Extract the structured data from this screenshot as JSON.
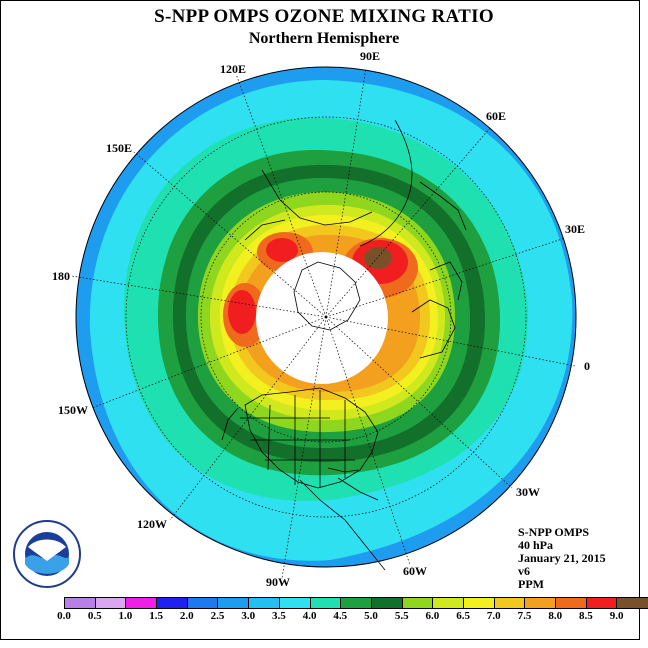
{
  "title": "S-NPP OMPS OZONE MIXING RATIO",
  "subtitle": "Northern Hemisphere",
  "longitude_labels": [
    "90E",
    "60E",
    "30E",
    "0",
    "30W",
    "60W",
    "90W",
    "120W",
    "150W",
    "180",
    "150E",
    "120E"
  ],
  "info": {
    "instrument": "S-NPP OMPS",
    "level": "40 hPa",
    "date": "January 21, 2015",
    "version": "v6",
    "units": "PPM"
  },
  "colorbar": {
    "ticks": [
      "0.0",
      "0.5",
      "1.0",
      "1.5",
      "2.0",
      "2.5",
      "3.0",
      "3.5",
      "4.0",
      "4.5",
      "5.0",
      "5.5",
      "6.0",
      "6.5",
      "7.0",
      "7.5",
      "8.0",
      "8.5",
      "9.0"
    ],
    "colors": [
      "#b87fe6",
      "#d9a6ef",
      "#f01fe8",
      "#2020f0",
      "#1e78ee",
      "#1e9cf0",
      "#22bff0",
      "#2fe0f0",
      "#1fe0b0",
      "#1ea040",
      "#12702a",
      "#8fd61e",
      "#d0e81e",
      "#f2f01e",
      "#f2c81e",
      "#f2a01e",
      "#f06a1e",
      "#f01e1e",
      "#7a5028"
    ]
  },
  "logo_text": "NOAA"
}
